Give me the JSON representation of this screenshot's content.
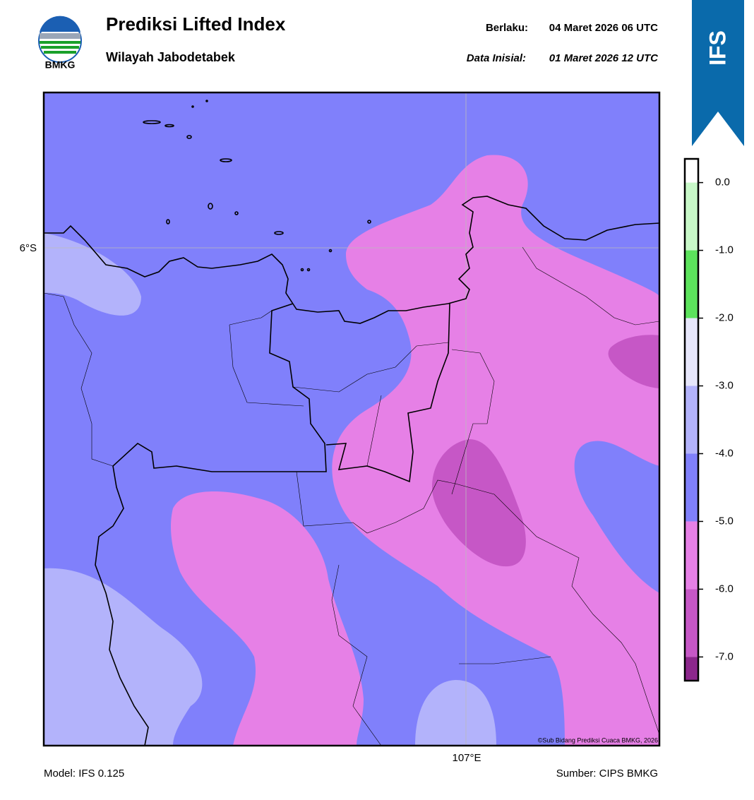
{
  "header": {
    "title": "Prediksi Lifted Index",
    "subtitle": "Wilayah Jabodetabek",
    "logo_text": "BMKG",
    "valid_label": "Berlaku:",
    "valid_time": "04 Maret 2026 06 UTC",
    "init_label": "Data Inisial:",
    "init_time": "01 Maret 2026 12 UTC",
    "badge": "IFS"
  },
  "map": {
    "lat_label": "6°S",
    "lon_label": "107°E",
    "credit": "©Sub Bidang Prediksi Cuaca BMKG, 2026"
  },
  "colorbar": {
    "range": [
      -7.35,
      0.35
    ],
    "ticks": [
      {
        "value": 0,
        "label": "0.0"
      },
      {
        "value": -1,
        "label": "-1.0"
      },
      {
        "value": -2,
        "label": "-2.0"
      },
      {
        "value": -3,
        "label": "-3.0"
      },
      {
        "value": -4,
        "label": "-4.0"
      },
      {
        "value": -5,
        "label": "-5.0"
      },
      {
        "value": -6,
        "label": "-6.0"
      },
      {
        "value": -7,
        "label": "-7.0"
      }
    ],
    "colors": [
      "#ffffff",
      "#c8f8c8",
      "#5ce35c",
      "#e6e6fa",
      "#b3b3fb",
      "#8080fb",
      "#e680e6",
      "#c657c6",
      "#8c278c"
    ]
  },
  "footer": {
    "model": "Model: IFS 0.125",
    "source": "Sumber: CIPS BMKG"
  }
}
